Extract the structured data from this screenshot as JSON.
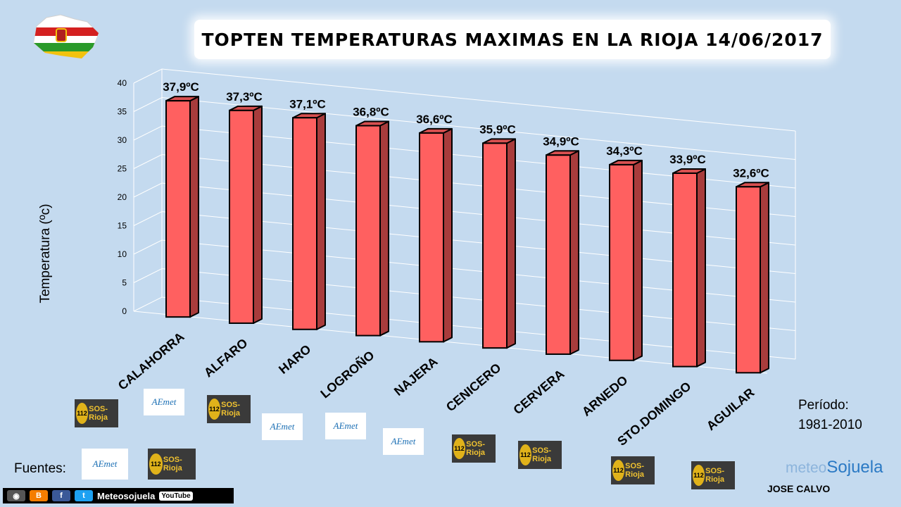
{
  "title": "TOPTEN TEMPERATURAS MAXIMAS EN LA RIOJA 14/06/2017",
  "chart_data": {
    "type": "bar",
    "title": "TOPTEN TEMPERATURAS MAXIMAS EN LA RIOJA 14/06/2017",
    "xlabel": "",
    "ylabel": "Temperatura (ºc)",
    "ylim": [
      0,
      40
    ],
    "yticks": [
      0,
      5,
      10,
      15,
      20,
      25,
      30,
      35,
      40
    ],
    "grid": true,
    "categories": [
      "CALAHORRA",
      "ALFARO",
      "HARO",
      "LOGROÑO",
      "NAJERA",
      "CENICERO",
      "CERVERA",
      "ARNEDO",
      "STO.DOMINGO",
      "AGUILAR"
    ],
    "values": [
      37.9,
      37.3,
      37.1,
      36.8,
      36.6,
      35.9,
      34.9,
      34.3,
      33.9,
      32.6
    ],
    "value_labels": [
      "37,9ºC",
      "37,3ºC",
      "37,1ºC",
      "36,8ºC",
      "36,6ºC",
      "35,9ºC",
      "34,9ºC",
      "34,3ºC",
      "33,9ºC",
      "32,6ºC"
    ],
    "bar_color": "#ff6060"
  },
  "sources": {
    "label": "Fuentes:",
    "sos_text": "SOS-Rioja",
    "sos_num": "112",
    "aemet_text": "AEmet"
  },
  "period": {
    "label": "Período:",
    "range": "1981-2010"
  },
  "author": "JOSE CALVO",
  "brand": {
    "prefix": "meteo",
    "name": "Sojuela"
  },
  "social": {
    "name": "Meteosojuela",
    "youtube": "YouTube"
  },
  "colors": {
    "background": "#c4daef",
    "bar": "#ff6060",
    "bar_side": "#a83c3c",
    "bar_top": "#d85050"
  }
}
